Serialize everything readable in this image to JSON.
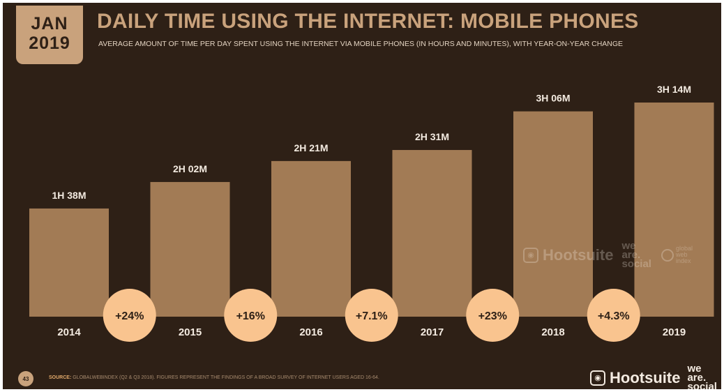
{
  "header": {
    "date_month": "JAN",
    "date_year": "2019",
    "title": "DAILY TIME USING THE INTERNET: MOBILE PHONES",
    "subtitle": "AVERAGE AMOUNT OF TIME PER DAY SPENT USING THE INTERNET VIA MOBILE PHONES (IN HOURS AND MINUTES), WITH YEAR-ON-YEAR CHANGE"
  },
  "chart_data": {
    "type": "bar",
    "categories": [
      "2014",
      "2015",
      "2016",
      "2017",
      "2018",
      "2019"
    ],
    "values_minutes": [
      98,
      122,
      141,
      151,
      186,
      194
    ],
    "value_labels": [
      "1H 38M",
      "2H 02M",
      "2H 21M",
      "2H 31M",
      "3H 06M",
      "3H 14M"
    ],
    "changes": [
      "+24%",
      "+16%",
      "+7.1%",
      "+23%",
      "+4.3%"
    ],
    "title": "DAILY TIME USING THE INTERNET: MOBILE PHONES",
    "xlabel": "",
    "ylabel": "",
    "grid": false,
    "legend": "none"
  },
  "watermark": {
    "brand": "Hootsuite",
    "we_are_social": [
      "we",
      "are.",
      "social"
    ],
    "gwi": [
      "global",
      "web",
      "index"
    ]
  },
  "footer": {
    "page_number": "43",
    "source_label": "SOURCE:",
    "source_text": "GLOBALWEBINDEX (Q2 & Q3 2018). FIGURES REPRESENT THE FINDINGS OF A BROAD SURVEY OF INTERNET USERS AGED 16-64.",
    "brand": "Hootsuite",
    "we_are_social": [
      "we",
      "are.",
      "social"
    ]
  },
  "colors": {
    "background": "#2e2016",
    "bar": "#a27b55",
    "accent": "#c9a27c",
    "bubble": "#f9c48f",
    "text_light": "#f4ebe1"
  }
}
